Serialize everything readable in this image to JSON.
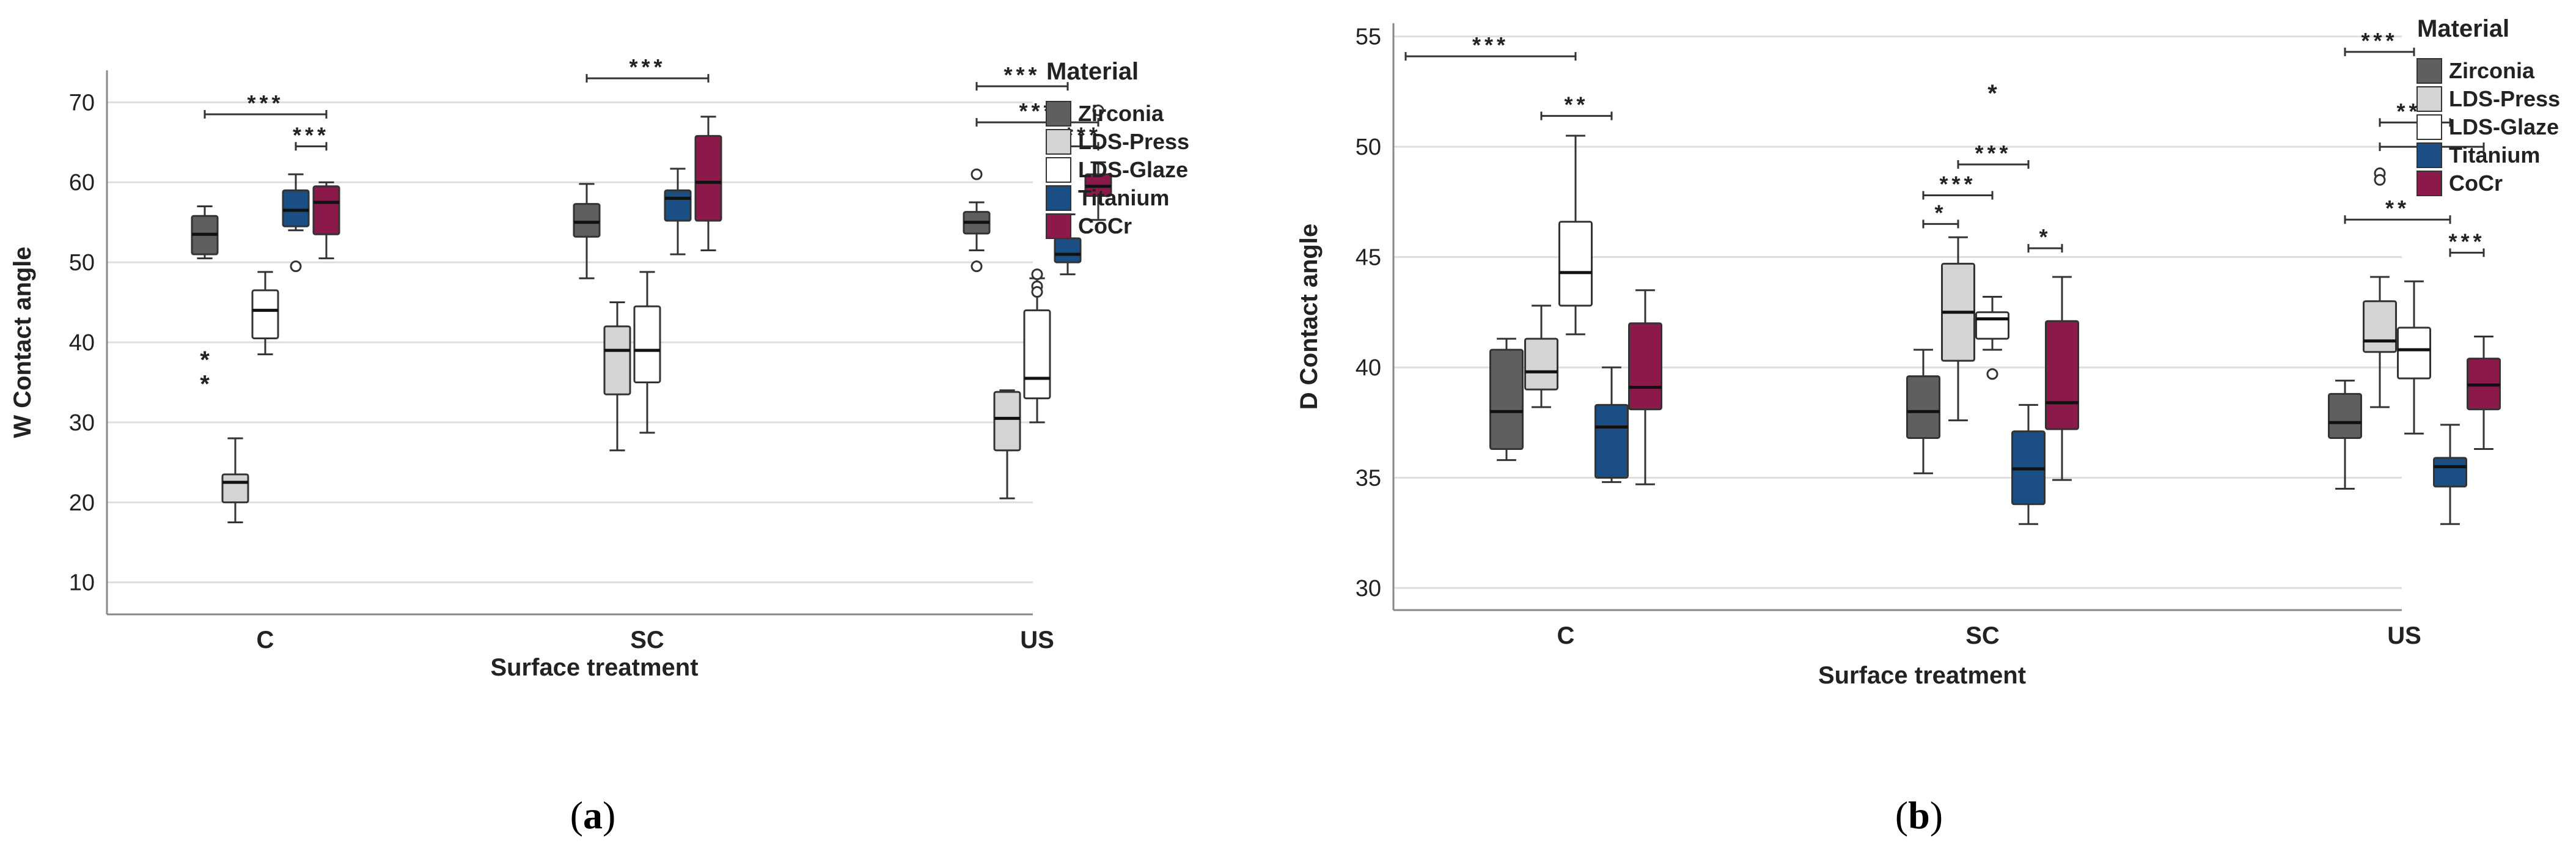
{
  "colors": {
    "Zirconia": "#5f5f5f",
    "LDS-Press": "#d4d4d4",
    "LDS-Glaze": "#ffffff",
    "Titanium": "#1b4f84",
    "CoCr": "#8b1a4a",
    "grid": "#dedede",
    "axis": "#888888",
    "text": "#222222"
  },
  "chart_data": [
    {
      "type": "box",
      "title": "",
      "caption_letter": "a",
      "xlabel": "Surface treatment",
      "ylabel": "W Contact angle",
      "ylim": [
        6,
        74
      ],
      "yticks": [
        10,
        20,
        30,
        40,
        50,
        60,
        70
      ],
      "categories": [
        "C",
        "SC",
        "US"
      ],
      "legend_title": "Material",
      "legend_placement": "right",
      "series": [
        {
          "name": "Zirconia",
          "boxes": [
            {
              "category": "C",
              "whisker_low": 50.5,
              "q1": 51.0,
              "median": 53.5,
              "q3": 55.8,
              "whisker_high": 57.0,
              "outliers": [],
              "extremes": [
                38.0,
                35.0
              ]
            },
            {
              "category": "SC",
              "whisker_low": 48.0,
              "q1": 53.2,
              "median": 55.0,
              "q3": 57.3,
              "whisker_high": 59.8,
              "outliers": [],
              "extremes": []
            },
            {
              "category": "US",
              "whisker_low": 51.5,
              "q1": 53.6,
              "median": 55.0,
              "q3": 56.3,
              "whisker_high": 57.5,
              "outliers": [
                61.0,
                49.5
              ],
              "extremes": []
            }
          ]
        },
        {
          "name": "LDS-Press",
          "boxes": [
            {
              "category": "C",
              "whisker_low": 17.5,
              "q1": 20.0,
              "median": 22.5,
              "q3": 23.5,
              "whisker_high": 28.0,
              "outliers": [],
              "extremes": []
            },
            {
              "category": "SC",
              "whisker_low": 26.5,
              "q1": 33.5,
              "median": 39.0,
              "q3": 42.0,
              "whisker_high": 45.0,
              "outliers": [],
              "extremes": []
            },
            {
              "category": "US",
              "whisker_low": 20.5,
              "q1": 26.5,
              "median": 30.5,
              "q3": 33.8,
              "whisker_high": 34.0,
              "outliers": [],
              "extremes": []
            }
          ]
        },
        {
          "name": "LDS-Glaze",
          "boxes": [
            {
              "category": "C",
              "whisker_low": 38.5,
              "q1": 40.5,
              "median": 44.0,
              "q3": 46.5,
              "whisker_high": 48.8,
              "outliers": [],
              "extremes": []
            },
            {
              "category": "SC",
              "whisker_low": 28.7,
              "q1": 35.0,
              "median": 39.0,
              "q3": 44.5,
              "whisker_high": 48.8,
              "outliers": [],
              "extremes": []
            },
            {
              "category": "US",
              "whisker_low": 30.0,
              "q1": 33.0,
              "median": 35.5,
              "q3": 44.0,
              "whisker_high": 48.0,
              "outliers": [
                48.5,
                47.0,
                46.3
              ],
              "extremes": []
            }
          ]
        },
        {
          "name": "Titanium",
          "boxes": [
            {
              "category": "C",
              "whisker_low": 54.0,
              "q1": 54.5,
              "median": 56.5,
              "q3": 59.0,
              "whisker_high": 61.0,
              "outliers": [
                49.5
              ],
              "extremes": []
            },
            {
              "category": "SC",
              "whisker_low": 51.0,
              "q1": 55.2,
              "median": 58.0,
              "q3": 59.0,
              "whisker_high": 61.7,
              "outliers": [],
              "extremes": []
            },
            {
              "category": "US",
              "whisker_low": 48.5,
              "q1": 50.0,
              "median": 51.0,
              "q3": 53.0,
              "whisker_high": 56.0,
              "outliers": [],
              "extremes": []
            }
          ]
        },
        {
          "name": "CoCr",
          "boxes": [
            {
              "category": "C",
              "whisker_low": 50.5,
              "q1": 53.5,
              "median": 57.5,
              "q3": 59.5,
              "whisker_high": 60.0,
              "outliers": [],
              "extremes": []
            },
            {
              "category": "SC",
              "whisker_low": 51.5,
              "q1": 55.2,
              "median": 60.0,
              "q3": 65.8,
              "whisker_high": 68.2,
              "outliers": [],
              "extremes": []
            },
            {
              "category": "US",
              "whisker_low": 55.3,
              "q1": 58.3,
              "median": 59.5,
              "q3": 61.0,
              "whisker_high": 62.5,
              "outliers": [
                69.0
              ],
              "extremes": []
            }
          ]
        }
      ],
      "significance": [
        {
          "label": "***",
          "from": [
            "C",
            "Zirconia"
          ],
          "to": [
            "C",
            "CoCr"
          ],
          "y": 68.5
        },
        {
          "label": "***",
          "from": [
            "C",
            "Titanium"
          ],
          "to": [
            "C",
            "CoCr"
          ],
          "y": 64.5
        },
        {
          "label": "***",
          "from": [
            "SC",
            "Zirconia"
          ],
          "to": [
            "SC",
            "CoCr"
          ],
          "y": 73.0
        },
        {
          "label": "***",
          "from": [
            "US",
            "Zirconia"
          ],
          "to": [
            "US",
            "Titanium"
          ],
          "y": 72.0
        },
        {
          "label": "***",
          "from": [
            "US",
            "Zirconia"
          ],
          "to": [
            "US",
            "CoCr"
          ],
          "y": 67.5
        },
        {
          "label": "***",
          "from": [
            "US",
            "Titanium"
          ],
          "to": [
            "US",
            "CoCr"
          ],
          "y": 64.5
        }
      ]
    },
    {
      "type": "box",
      "title": "",
      "caption_letter": "b",
      "xlabel": "Surface treatment",
      "ylabel": "D Contact angle",
      "ylim": [
        29,
        55.6
      ],
      "yticks": [
        30,
        35,
        40,
        45,
        50,
        55
      ],
      "categories": [
        "C",
        "SC",
        "US"
      ],
      "legend_title": "Material",
      "legend_placement": "right",
      "series": [
        {
          "name": "Zirconia",
          "boxes": [
            {
              "category": "C",
              "whisker_low": 35.8,
              "q1": 36.3,
              "median": 38.0,
              "q3": 40.8,
              "whisker_high": 41.3,
              "outliers": [],
              "extremes": []
            },
            {
              "category": "SC",
              "whisker_low": 35.2,
              "q1": 36.8,
              "median": 38.0,
              "q3": 39.6,
              "whisker_high": 40.8,
              "outliers": [],
              "extremes": []
            },
            {
              "category": "US",
              "whisker_low": 34.5,
              "q1": 36.8,
              "median": 37.5,
              "q3": 38.8,
              "whisker_high": 39.4,
              "outliers": [],
              "extremes": []
            }
          ]
        },
        {
          "name": "LDS-Press",
          "boxes": [
            {
              "category": "C",
              "whisker_low": 38.2,
              "q1": 39.0,
              "median": 39.8,
              "q3": 41.3,
              "whisker_high": 42.8,
              "outliers": [],
              "extremes": []
            },
            {
              "category": "SC",
              "whisker_low": 37.6,
              "q1": 40.3,
              "median": 42.5,
              "q3": 44.7,
              "whisker_high": 45.9,
              "outliers": [],
              "extremes": []
            },
            {
              "category": "US",
              "whisker_low": 38.2,
              "q1": 40.7,
              "median": 41.2,
              "q3": 43.0,
              "whisker_high": 44.1,
              "outliers": [
                48.8,
                48.5
              ],
              "extremes": []
            }
          ]
        },
        {
          "name": "LDS-Glaze",
          "boxes": [
            {
              "category": "C",
              "whisker_low": 41.5,
              "q1": 42.8,
              "median": 44.3,
              "q3": 46.6,
              "whisker_high": 50.5,
              "outliers": [],
              "extremes": []
            },
            {
              "category": "SC",
              "whisker_low": 40.8,
              "q1": 41.3,
              "median": 42.2,
              "q3": 42.5,
              "whisker_high": 43.2,
              "outliers": [
                39.7
              ],
              "extremes": [
                52.5
              ]
            },
            {
              "category": "US",
              "whisker_low": 37.0,
              "q1": 39.5,
              "median": 40.8,
              "q3": 41.8,
              "whisker_high": 43.9,
              "outliers": [],
              "extremes": []
            }
          ]
        },
        {
          "name": "Titanium",
          "boxes": [
            {
              "category": "C",
              "whisker_low": 34.8,
              "q1": 35.0,
              "median": 37.3,
              "q3": 38.3,
              "whisker_high": 40.0,
              "outliers": [],
              "extremes": []
            },
            {
              "category": "SC",
              "whisker_low": 32.9,
              "q1": 33.8,
              "median": 35.4,
              "q3": 37.1,
              "whisker_high": 38.3,
              "outliers": [],
              "extremes": []
            },
            {
              "category": "US",
              "whisker_low": 32.9,
              "q1": 34.6,
              "median": 35.5,
              "q3": 35.9,
              "whisker_high": 37.4,
              "outliers": [],
              "extremes": []
            }
          ]
        },
        {
          "name": "CoCr",
          "boxes": [
            {
              "category": "C",
              "whisker_low": 34.7,
              "q1": 38.1,
              "median": 39.1,
              "q3": 42.0,
              "whisker_high": 43.5,
              "outliers": [],
              "extremes": []
            },
            {
              "category": "SC",
              "whisker_low": 34.9,
              "q1": 37.2,
              "median": 38.4,
              "q3": 42.1,
              "whisker_high": 44.1,
              "outliers": [],
              "extremes": []
            },
            {
              "category": "US",
              "whisker_low": 36.3,
              "q1": 38.1,
              "median": 39.2,
              "q3": 40.4,
              "whisker_high": 41.4,
              "outliers": [],
              "extremes": []
            }
          ]
        }
      ],
      "significance": [
        {
          "label": "***",
          "from": [
            "C",
            "Zirconia",
            "left"
          ],
          "to": [
            "C",
            "LDS-Glaze"
          ],
          "y": 54.1
        },
        {
          "label": "**",
          "from": [
            "C",
            "LDS-Press"
          ],
          "to": [
            "C",
            "Titanium"
          ],
          "y": 51.4
        },
        {
          "label": "***",
          "from": [
            "SC",
            "Zirconia"
          ],
          "to": [
            "SC",
            "LDS-Glaze"
          ],
          "y": 47.8
        },
        {
          "label": "*",
          "from": [
            "SC",
            "Zirconia"
          ],
          "to": [
            "SC",
            "LDS-Press"
          ],
          "y": 46.5
        },
        {
          "label": "***",
          "from": [
            "SC",
            "LDS-Press"
          ],
          "to": [
            "SC",
            "Titanium"
          ],
          "y": 49.2
        },
        {
          "label": "*",
          "from": [
            "SC",
            "Titanium"
          ],
          "to": [
            "SC",
            "CoCr"
          ],
          "y": 45.4
        },
        {
          "label": "***",
          "from": [
            "US",
            "Zirconia"
          ],
          "to": [
            "US",
            "LDS-Glaze"
          ],
          "y": 54.3
        },
        {
          "label": "***",
          "from": [
            "US",
            "LDS-Press"
          ],
          "to": [
            "US",
            "Titanium"
          ],
          "y": 51.1
        },
        {
          "label": "*",
          "from": [
            "US",
            "LDS-Press"
          ],
          "to": [
            "US",
            "CoCr"
          ],
          "y": 50.0
        },
        {
          "label": "**",
          "from": [
            "US",
            "Zirconia"
          ],
          "to": [
            "US",
            "Titanium"
          ],
          "y": 46.7
        },
        {
          "label": "***",
          "from": [
            "US",
            "Titanium"
          ],
          "to": [
            "US",
            "CoCr"
          ],
          "y": 45.2
        }
      ]
    }
  ]
}
